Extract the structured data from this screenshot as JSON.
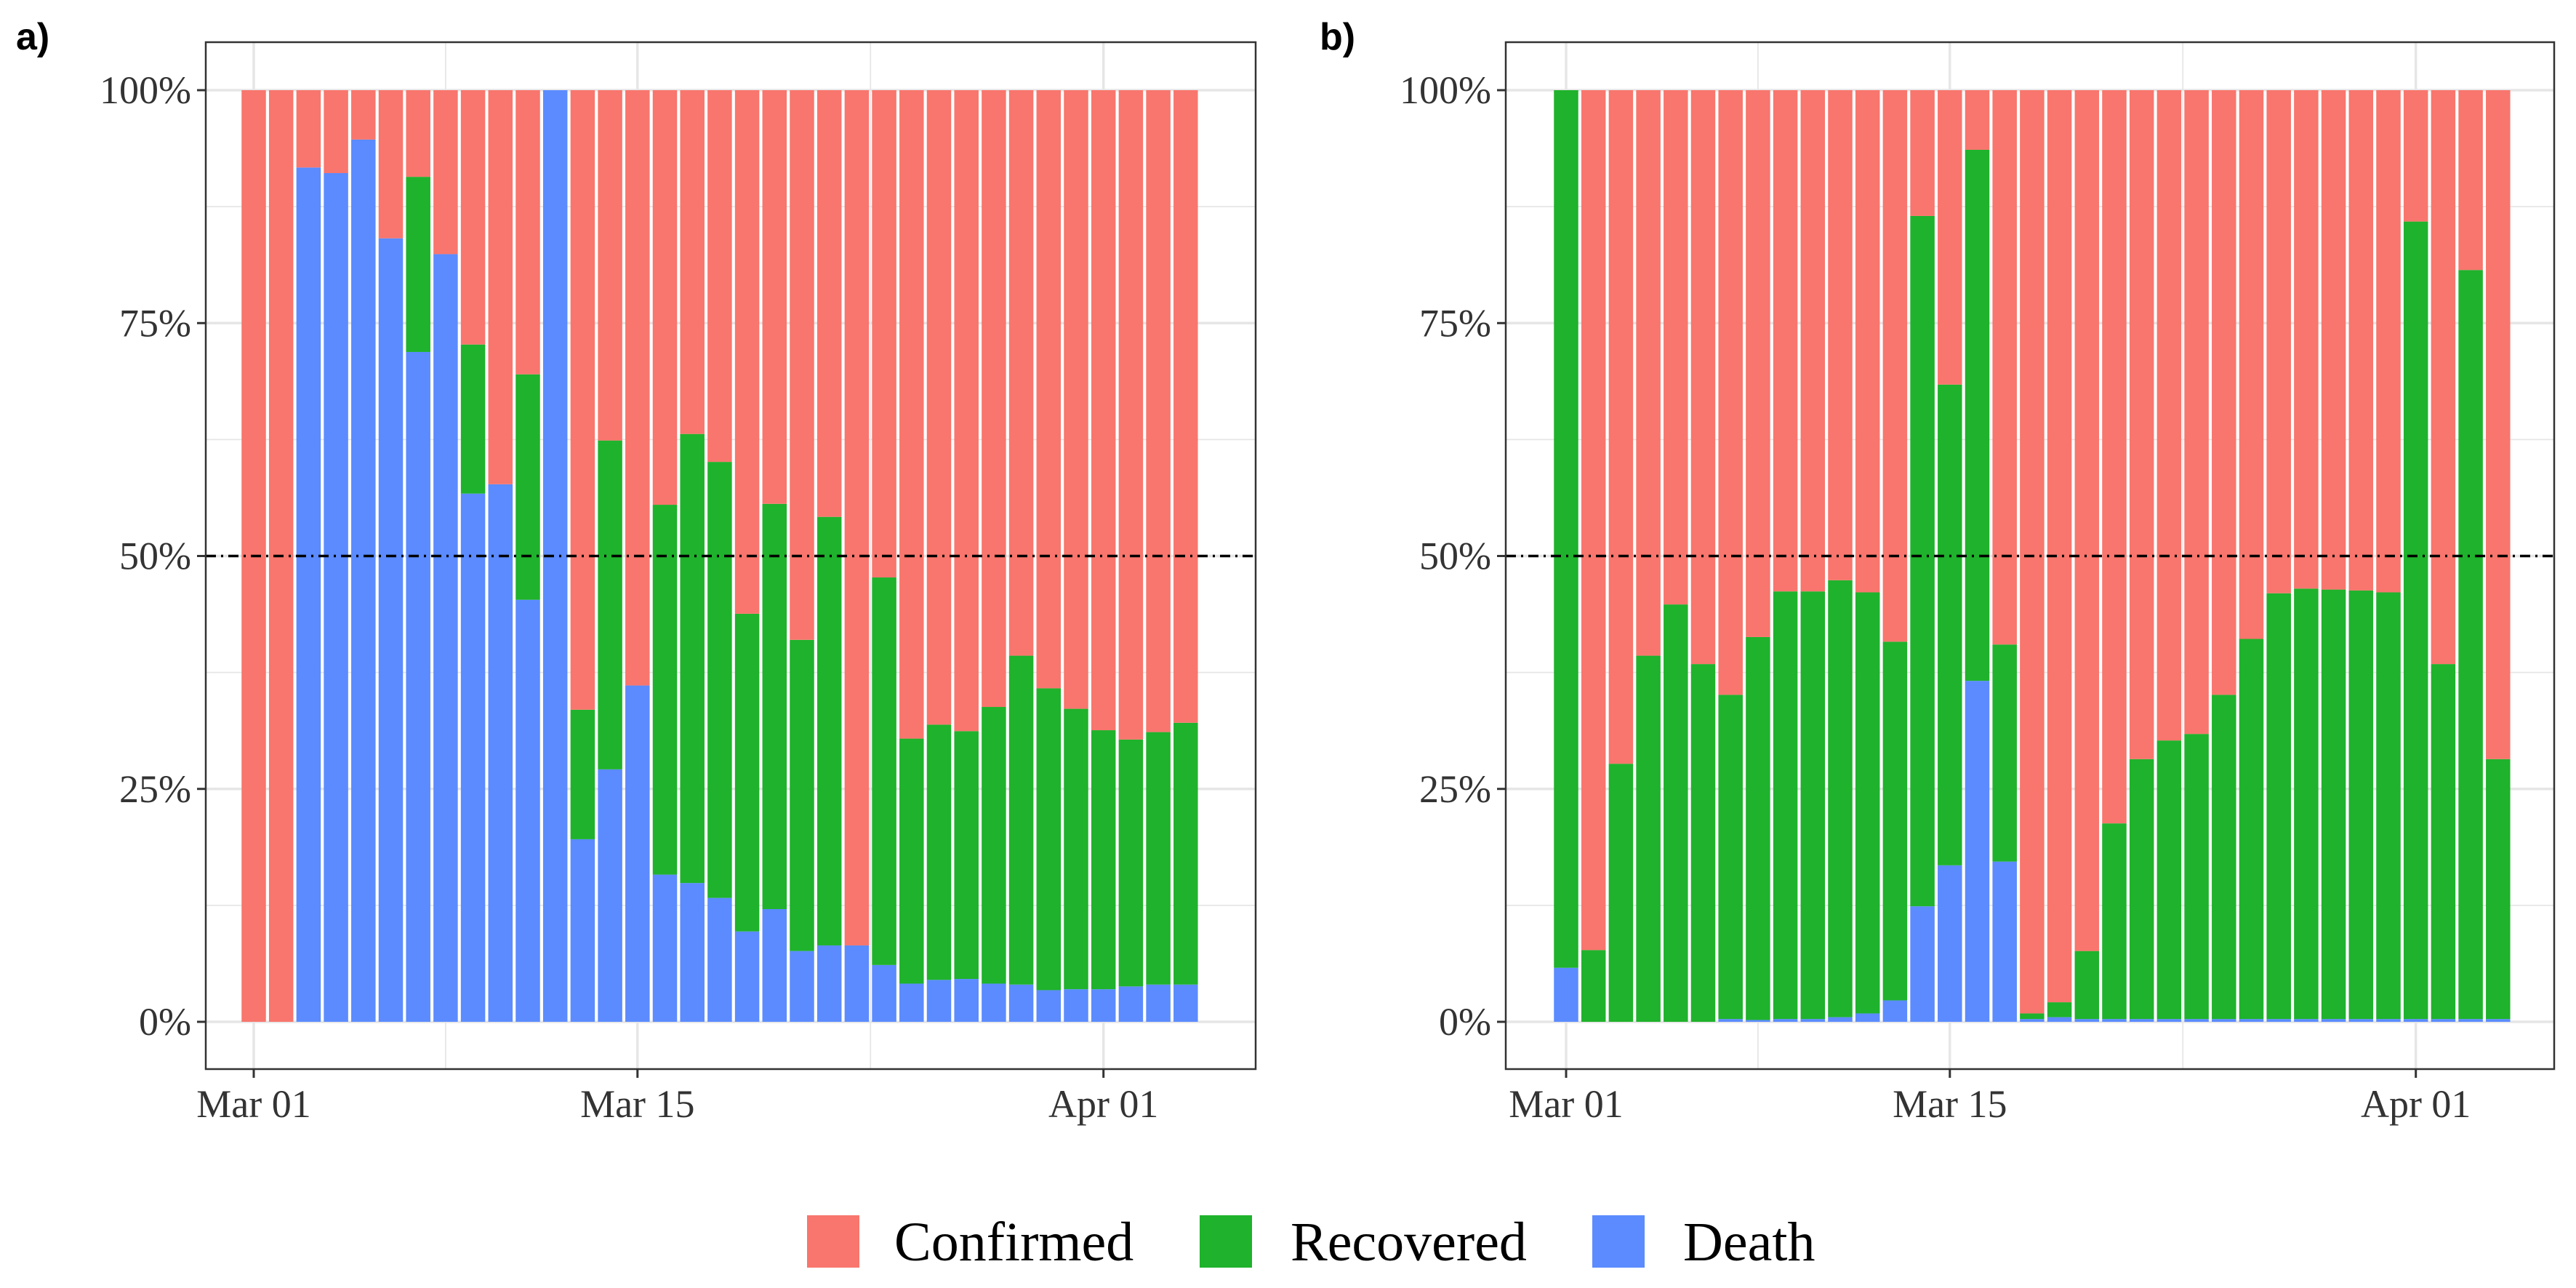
{
  "chart_data": [
    {
      "panel_label": "a)",
      "type": "bar",
      "stacked": true,
      "normalized": true,
      "x_type": "date",
      "x_start": "2020-03-01",
      "x_end": "2020-04-04",
      "x_ticks": [
        {
          "date": "2020-03-01",
          "label": "Mar 01"
        },
        {
          "date": "2020-03-15",
          "label": "Mar 15"
        },
        {
          "date": "2020-04-01",
          "label": "Apr 01"
        }
      ],
      "y_ticks": [
        "0%",
        "25%",
        "50%",
        "75%",
        "100%"
      ],
      "ylim": [
        0,
        100
      ],
      "reference_line": {
        "y": 50,
        "style": "dashed"
      },
      "grid": true,
      "series": [
        {
          "name": "Death",
          "values": [
            0,
            0,
            91.7,
            91.1,
            94.7,
            84.1,
            71.9,
            82.4,
            56.7,
            57.7,
            45.3,
            100,
            19.6,
            27.1,
            36.1,
            15.8,
            14.9,
            13.3,
            9.7,
            12.1,
            7.6,
            8.2,
            8.2,
            6.1,
            4.1,
            4.5,
            4.6,
            4.1,
            4,
            3.4,
            3.5,
            3.5,
            3.8,
            4,
            4
          ]
        },
        {
          "name": "Recovered",
          "values": [
            0,
            0,
            0,
            0,
            0,
            0,
            18.8,
            0,
            16,
            0,
            24.2,
            0,
            13.9,
            35.3,
            0,
            39.7,
            48.2,
            46.8,
            34.1,
            43.5,
            33.4,
            46,
            0,
            41.6,
            26.3,
            27.4,
            26.6,
            29.7,
            35.3,
            32.4,
            30.1,
            27.8,
            26.5,
            27.1,
            28.1
          ]
        },
        {
          "name": "Confirmed",
          "values": [
            100,
            100,
            8.3,
            8.9,
            5.3,
            15.9,
            9.3,
            17.6,
            27.3,
            42.3,
            30.5,
            0,
            66.5,
            37.6,
            63.9,
            44.5,
            36.9,
            39.9,
            56.2,
            44.4,
            59,
            45.8,
            91.8,
            52.3,
            69.6,
            68.1,
            68.8,
            66.2,
            60.7,
            64.2,
            66.4,
            68.7,
            69.7,
            68.9,
            67.9
          ]
        }
      ]
    },
    {
      "panel_label": "b)",
      "type": "bar",
      "stacked": true,
      "normalized": true,
      "x_type": "date",
      "x_start": "2020-03-01",
      "x_end": "2020-04-04",
      "x_ticks": [
        {
          "date": "2020-03-01",
          "label": "Mar 01"
        },
        {
          "date": "2020-03-15",
          "label": "Mar 15"
        },
        {
          "date": "2020-04-01",
          "label": "Apr 01"
        }
      ],
      "y_ticks": [
        "0%",
        "25%",
        "50%",
        "75%",
        "100%"
      ],
      "ylim": [
        0,
        100
      ],
      "reference_line": {
        "y": 50,
        "style": "dashed"
      },
      "grid": true,
      "series": [
        {
          "name": "Death",
          "values": [
            5.8,
            0,
            0,
            0,
            0,
            0,
            0.3,
            0.2,
            0.3,
            0.3,
            0.5,
            0.9,
            2.3,
            12.4,
            16.8,
            36.6,
            17.2,
            0.3,
            0.5,
            0.3,
            0.3,
            0.3,
            0.3,
            0.3,
            0.3,
            0.3,
            0.3,
            0.3,
            0.3,
            0.3,
            0.3,
            0.3,
            0.3,
            0.3,
            0.3
          ]
        },
        {
          "name": "Recovered",
          "values": [
            94.2,
            7.7,
            27.7,
            39.3,
            44.8,
            38.4,
            34.8,
            41.1,
            45.9,
            45.9,
            46.9,
            45.2,
            38.5,
            74.1,
            51.6,
            57,
            23.3,
            0.6,
            1.6,
            7.3,
            21,
            27.9,
            29.9,
            30.6,
            34.8,
            40.8,
            45.7,
            46.2,
            46.1,
            46,
            45.8,
            85.6,
            38.1,
            80.4,
            27.9
          ]
        },
        {
          "name": "Confirmed",
          "values": [
            0,
            92.3,
            72.3,
            60.7,
            55.2,
            61.6,
            64.9,
            58.7,
            53.8,
            53.8,
            52.6,
            53.9,
            59.2,
            13.5,
            31.6,
            6.4,
            59.5,
            99.1,
            97.9,
            92.4,
            78.7,
            71.8,
            69.8,
            69.1,
            64.9,
            58.9,
            54,
            53.5,
            53.6,
            53.7,
            53.9,
            14.1,
            61.6,
            19.3,
            71.8
          ]
        }
      ]
    }
  ],
  "legend": {
    "position": "bottom",
    "items": [
      {
        "name": "Confirmed",
        "color": "#F8766D"
      },
      {
        "name": "Recovered",
        "color": "#1FB22C"
      },
      {
        "name": "Death",
        "color": "#5B8BFF"
      }
    ]
  },
  "colors": {
    "Confirmed": "#F8766D",
    "Recovered": "#1FB22C",
    "Death": "#5B8BFF",
    "grid": "#E6E6E6",
    "panel_border": "#333333",
    "reference_line": "#000000"
  }
}
